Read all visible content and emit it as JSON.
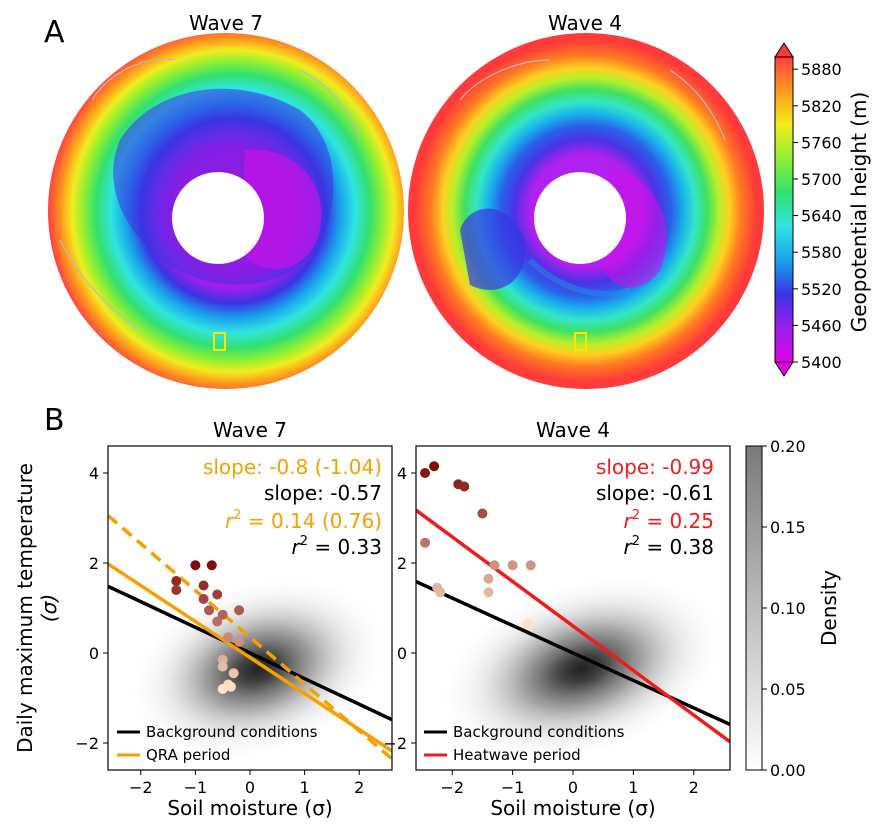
{
  "panel_labels": {
    "a": "A",
    "b": "B"
  },
  "chart_data": [
    {
      "type": "heatmap",
      "panel": "A",
      "maps": [
        {
          "title": "Wave 7"
        },
        {
          "title": "Wave 4"
        }
      ],
      "colorbar": {
        "label": "Geopotential height (m)",
        "ticks": [
          "5880",
          "5820",
          "5760",
          "5700",
          "5640",
          "5580",
          "5520",
          "5460",
          "5400"
        ],
        "range": [
          5400,
          5900
        ],
        "colors": [
          "#e600e6",
          "#9b1fef",
          "#3a34e2",
          "#19a2ec",
          "#2fe5e0",
          "#33e070",
          "#8ef032",
          "#f2ec1f",
          "#ff9a1c",
          "#ff4040"
        ]
      }
    },
    {
      "type": "scatter",
      "panel": "B-left",
      "title": "Wave 7",
      "xlabel": "Soil moisture (σ)",
      "ylabel_line1": "Daily maximum temperature",
      "ylabel_line2": "(σ)",
      "xlim": [
        -2.6,
        2.6
      ],
      "ylim": [
        -2.6,
        4.6
      ],
      "xticks": [
        "−2",
        "−1",
        "0",
        "1",
        "2"
      ],
      "yticks": [
        "−2",
        "0",
        "2",
        "4"
      ],
      "annotations": {
        "slope_event": "slope: -0.8 (-1.04)",
        "slope_background": "slope: -0.57",
        "r2_event_prefix": "r",
        "r2_event_value": " = 0.14 (0.76)",
        "r2_background_prefix": "r",
        "r2_background_value": " = 0.33",
        "superscript": "2"
      },
      "event_color": "#f5a000",
      "lines": [
        {
          "name": "Background conditions",
          "color": "#000000",
          "slope": -0.57,
          "intercept": 0.0
        },
        {
          "name": "QRA period",
          "color": "#f5a000",
          "slope": -0.8,
          "intercept": -0.1
        },
        {
          "color": "#f5a000",
          "slope": -1.04,
          "intercept": 0.35,
          "dashed": true
        }
      ],
      "points": [
        [
          -1.35,
          1.6
        ],
        [
          -1.35,
          1.4
        ],
        [
          -1.0,
          1.95
        ],
        [
          -0.7,
          1.95
        ],
        [
          -0.85,
          1.5
        ],
        [
          -0.85,
          1.2
        ],
        [
          -0.6,
          1.3
        ],
        [
          -0.75,
          0.95
        ],
        [
          -0.2,
          0.95
        ],
        [
          -0.5,
          0.85
        ],
        [
          -0.6,
          0.7
        ],
        [
          -0.4,
          0.35
        ],
        [
          -0.2,
          0.25
        ],
        [
          -0.5,
          -0.15
        ],
        [
          -0.5,
          -0.3
        ],
        [
          -0.3,
          -0.45
        ],
        [
          -0.4,
          -0.7
        ],
        [
          -0.35,
          -0.75
        ],
        [
          -0.5,
          -0.8
        ]
      ],
      "legend": [
        "Background conditions",
        "QRA period"
      ]
    },
    {
      "type": "scatter",
      "panel": "B-right",
      "title": "Wave 4",
      "xlabel": "Soil moisture (σ)",
      "xlim": [
        -2.6,
        2.6
      ],
      "ylim": [
        -2.6,
        4.6
      ],
      "xticks": [
        "−2",
        "−1",
        "0",
        "1",
        "2"
      ],
      "yticks": [
        "−2",
        "0",
        "2",
        "4"
      ],
      "annotations": {
        "slope_event": "slope: -0.99",
        "slope_background": "slope: -0.61",
        "r2_event_prefix": "r",
        "r2_event_value": " = 0.25",
        "r2_background_prefix": "r",
        "r2_background_value": " = 0.38",
        "superscript": "2"
      },
      "event_color": "#ee1c1c",
      "lines": [
        {
          "name": "Background conditions",
          "color": "#000000",
          "slope": -0.61,
          "intercept": 0.0
        },
        {
          "name": "Heatwave period",
          "color": "#ee1c1c",
          "slope": -0.99,
          "intercept": 0.6
        }
      ],
      "points": [
        [
          -2.3,
          4.15
        ],
        [
          -2.45,
          4.0
        ],
        [
          -1.9,
          3.75
        ],
        [
          -1.8,
          3.7
        ],
        [
          -1.5,
          3.1
        ],
        [
          -2.45,
          2.45
        ],
        [
          -2.25,
          1.45
        ],
        [
          -2.2,
          1.35
        ],
        [
          -1.4,
          1.65
        ],
        [
          -1.4,
          1.35
        ],
        [
          -1.3,
          1.95
        ],
        [
          -1.0,
          1.95
        ],
        [
          -0.7,
          1.95
        ],
        [
          -0.75,
          0.65
        ]
      ],
      "legend": [
        "Background conditions",
        "Heatwave period"
      ],
      "colorbar": {
        "label": "Density",
        "ticks": [
          "0.20",
          "0.15",
          "0.10",
          "0.05",
          "0.00"
        ],
        "range": [
          0,
          0.2
        ]
      }
    }
  ]
}
